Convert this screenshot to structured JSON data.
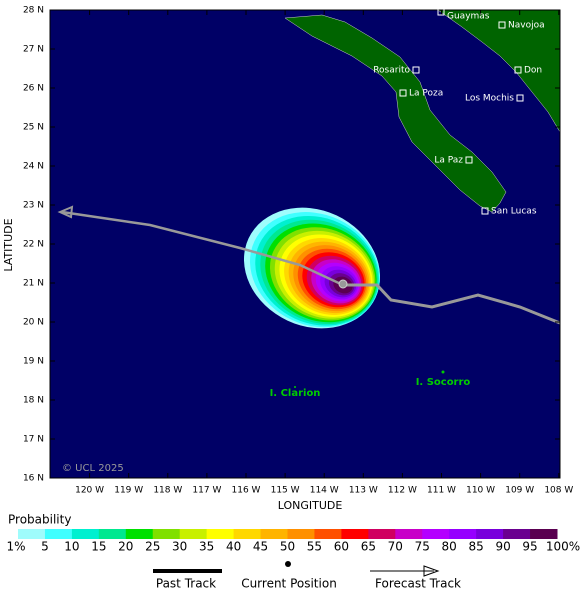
{
  "map": {
    "x_axis_label": "LONGITUDE",
    "y_axis_label": "LATITUDE",
    "x_ticks": [
      "120 W",
      "119 W",
      "118 W",
      "117 W",
      "116 W",
      "115 W",
      "114 W",
      "113 W",
      "112 W",
      "111 W",
      "110 W",
      "109 W",
      "108 W"
    ],
    "y_ticks": [
      "28 N",
      "27 N",
      "26 N",
      "25 N",
      "24 N",
      "23 N",
      "22 N",
      "21 N",
      "20 N",
      "19 N",
      "18 N",
      "17 N",
      "16 N"
    ],
    "cities": [
      "Guaymas",
      "Navojoa",
      "Rosarito",
      "Don",
      "La Poza",
      "Los Mochis",
      "La Paz",
      "San Lucas"
    ],
    "islands": [
      "I. Clarion",
      "I. Socorro"
    ],
    "copyright": "© UCL 2025"
  },
  "legend": {
    "title": "Probability",
    "labels": [
      "1%",
      "5",
      "10",
      "15",
      "20",
      "25",
      "30",
      "35",
      "40",
      "45",
      "50",
      "55",
      "60",
      "65",
      "70",
      "75",
      "80",
      "85",
      "90",
      "95",
      "100%"
    ],
    "colors": [
      "#9ffcfc",
      "#40ffff",
      "#00f0d0",
      "#00e890",
      "#00e000",
      "#80e000",
      "#c8f000",
      "#ffff00",
      "#ffd800",
      "#ffb400",
      "#ff9000",
      "#ff5000",
      "#ff0000",
      "#d00060",
      "#c800c8",
      "#b400ff",
      "#9600ff",
      "#7800dc",
      "#6a0090",
      "#5a0050"
    ],
    "items": [
      "Past Track",
      "Current Position",
      "Forecast Track"
    ]
  }
}
